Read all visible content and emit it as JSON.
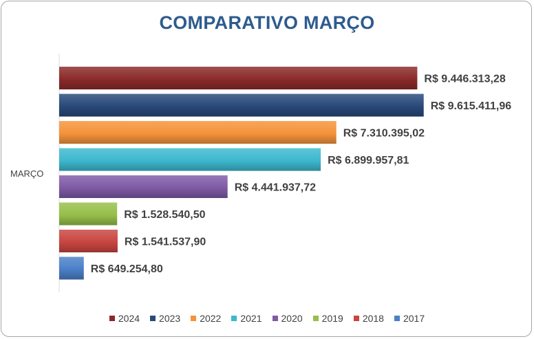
{
  "chart_data": {
    "type": "bar",
    "orientation": "horizontal",
    "title": "COMPARATIVO MARÇO",
    "categories": [
      "MARÇO"
    ],
    "series": [
      {
        "name": "2024",
        "values": [
          9446313.28
        ],
        "label": "R$ 9.446.313,28",
        "color": "#8b2a2a"
      },
      {
        "name": "2023",
        "values": [
          9615411.96
        ],
        "label": "R$ 9.615.411,96",
        "color": "#28497a"
      },
      {
        "name": "2022",
        "values": [
          7310395.02
        ],
        "label": "R$ 7.310.395,02",
        "color": "#f5923a"
      },
      {
        "name": "2021",
        "values": [
          6899957.81
        ],
        "label": "R$ 6.899.957,81",
        "color": "#3db8cf"
      },
      {
        "name": "2020",
        "values": [
          4441937.72
        ],
        "label": "R$ 4.441.937,72",
        "color": "#7f5aa6"
      },
      {
        "name": "2019",
        "values": [
          1528540.5
        ],
        "label": "R$ 1.528.540,50",
        "color": "#96bf4a"
      },
      {
        "name": "2018",
        "values": [
          1541537.9
        ],
        "label": "R$ 1.541.537,90",
        "color": "#c94541"
      },
      {
        "name": "2017",
        "values": [
          649254.8
        ],
        "label": "R$ 649.254,80",
        "color": "#4a80c8"
      }
    ],
    "xlim": [
      0,
      10000000
    ],
    "grid": false,
    "legend_position": "bottom"
  }
}
